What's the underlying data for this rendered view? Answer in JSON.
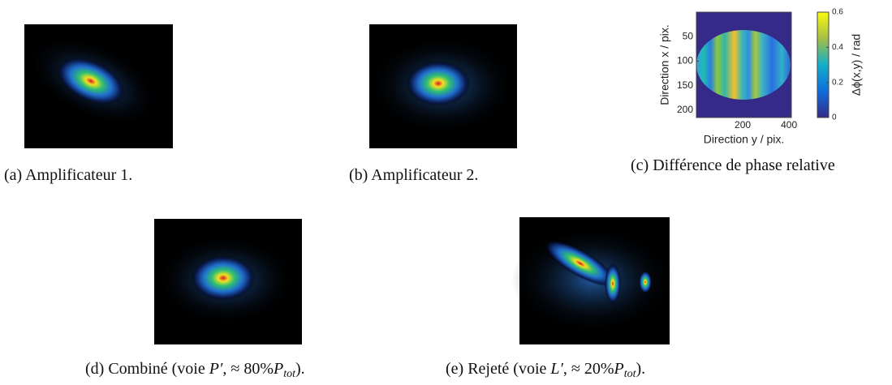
{
  "figures": [
    {
      "caption": "(a) Amplificateur 1."
    },
    {
      "caption": "(b) Amplificateur 2."
    },
    {
      "caption": "(c) Différence de phase relative"
    },
    {
      "caption": {
        "prefix": "(d) Combiné (voie ",
        "var": "P′",
        "mid": ", ≈ 80%",
        "var2": "P",
        "sub": "tot",
        "suffix": ")."
      }
    },
    {
      "caption": {
        "prefix": "(e) Rejeté (voie ",
        "var": "L′",
        "mid": ", ≈ 20%",
        "var2": "P",
        "sub": "tot",
        "suffix": ")."
      }
    }
  ],
  "chart_data": {
    "type": "heatmap",
    "xlabel": "Direction y / pix.",
    "ylabel": "Direction x / pix.",
    "colorbar_label": "Δϕ(x,y) / rad",
    "xlim": [
      0,
      410
    ],
    "xticks": [
      200,
      400
    ],
    "ylim": [
      0,
      215
    ],
    "yticks": [
      50,
      100,
      150,
      200
    ],
    "y_inverted": true,
    "clim": [
      0,
      0.6
    ],
    "cticks": [
      0,
      0.2,
      0.4,
      0.6
    ]
  }
}
